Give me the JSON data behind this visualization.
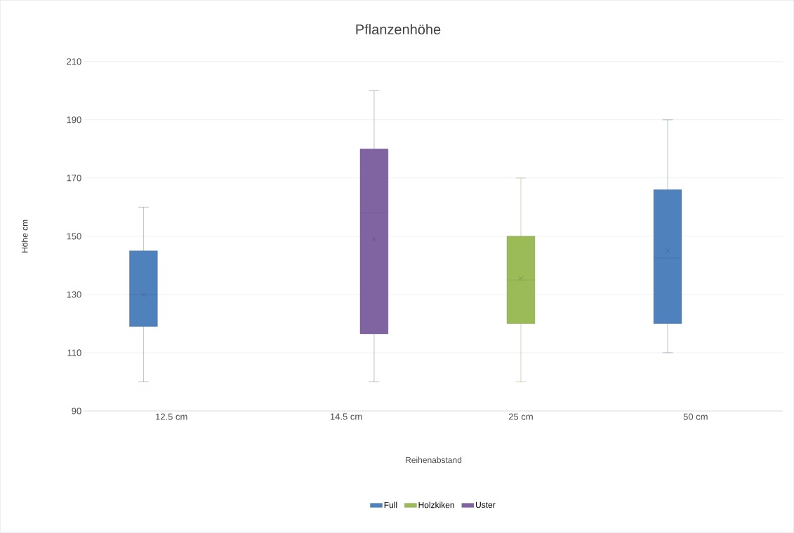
{
  "chart_data": {
    "type": "box",
    "title": "Pflanzenhöhe",
    "xlabel": "Reihenabstand",
    "ylabel": "Höhe cm",
    "categories": [
      "12.5 cm",
      "14.5 cm",
      "25 cm",
      "50 cm"
    ],
    "ylim": [
      90,
      210
    ],
    "yticks": [
      90,
      110,
      130,
      150,
      170,
      190,
      210
    ],
    "grid": "y",
    "legend": "bottom",
    "series": [
      {
        "name": "Full",
        "color": "#4f81bd",
        "boxes": [
          {
            "low": 100,
            "q1": 119,
            "median": 130,
            "q3": 145,
            "high": 160,
            "mean": 130
          },
          null,
          null,
          {
            "low": 110,
            "q1": 120,
            "median": 142.5,
            "q3": 166,
            "high": 190,
            "mean": 145
          }
        ]
      },
      {
        "name": "Holzkiken",
        "color": "#9bbb59",
        "boxes": [
          null,
          null,
          {
            "low": 100,
            "q1": 120,
            "median": 135,
            "q3": 150,
            "high": 170,
            "mean": 135.5
          },
          null
        ]
      },
      {
        "name": "Uster",
        "color": "#8064a2",
        "boxes": [
          null,
          {
            "low": 100,
            "q1": 116.5,
            "median": 158,
            "q3": 180,
            "high": 200,
            "mean": 149
          },
          null,
          null
        ]
      }
    ]
  }
}
